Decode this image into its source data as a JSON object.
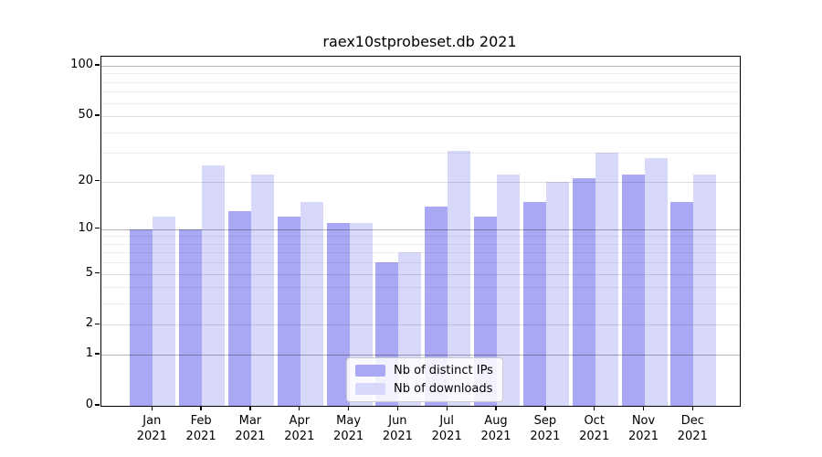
{
  "title": "raex10stprobeset.db 2021",
  "chart_data": {
    "type": "bar",
    "title": "raex10stprobeset.db 2021",
    "categories": [
      "Jan 2021",
      "Feb 2021",
      "Mar 2021",
      "Apr 2021",
      "May 2021",
      "Jun 2021",
      "Jul 2021",
      "Aug 2021",
      "Sep 2021",
      "Oct 2021",
      "Nov 2021",
      "Dec 2021"
    ],
    "month_labels": [
      "Jan",
      "Feb",
      "Mar",
      "Apr",
      "May",
      "Jun",
      "Jul",
      "Aug",
      "Sep",
      "Oct",
      "Nov",
      "Dec"
    ],
    "year_label": "2021",
    "series": [
      {
        "name": "Nb of distinct IPs",
        "color": "#a8a8f4",
        "values": [
          10,
          10,
          13,
          12,
          11,
          6,
          14,
          12,
          15,
          21,
          22,
          15
        ]
      },
      {
        "name": "Nb of downloads",
        "color": "#d8d8fa",
        "values": [
          12,
          25,
          22,
          15,
          11,
          7,
          31,
          22,
          20,
          30,
          28,
          22
        ]
      }
    ],
    "yscale": "symlog (pixel position proportional to log10(1+v))",
    "ylim": [
      0,
      101
    ],
    "yticks": [
      0,
      1,
      2,
      5,
      10,
      20,
      50,
      100
    ],
    "ytick_labels": [
      "0",
      "1",
      "2",
      "5",
      "10",
      "20",
      "50",
      "100"
    ],
    "grid": "on (major + minor, drawn over bars)",
    "gridline_tiers": {
      "strong": [
        1,
        10,
        100
      ],
      "medium": [
        2,
        5,
        20,
        50
      ],
      "minor": [
        3,
        4,
        6,
        7,
        8,
        9,
        30,
        40,
        60,
        70,
        80,
        90
      ]
    },
    "legend_position": "lower center"
  },
  "legend": {
    "items": [
      {
        "label": "Nb of distinct IPs",
        "color": "#a8a8f4"
      },
      {
        "label": "Nb of downloads",
        "color": "#d8d8fa"
      }
    ]
  },
  "colors": {
    "bar_distinct_ips": "#a8a8f4",
    "bar_downloads": "#d8d8fa",
    "spine": "#000000",
    "background": "#ffffff",
    "legend_border": "#cccccc"
  }
}
